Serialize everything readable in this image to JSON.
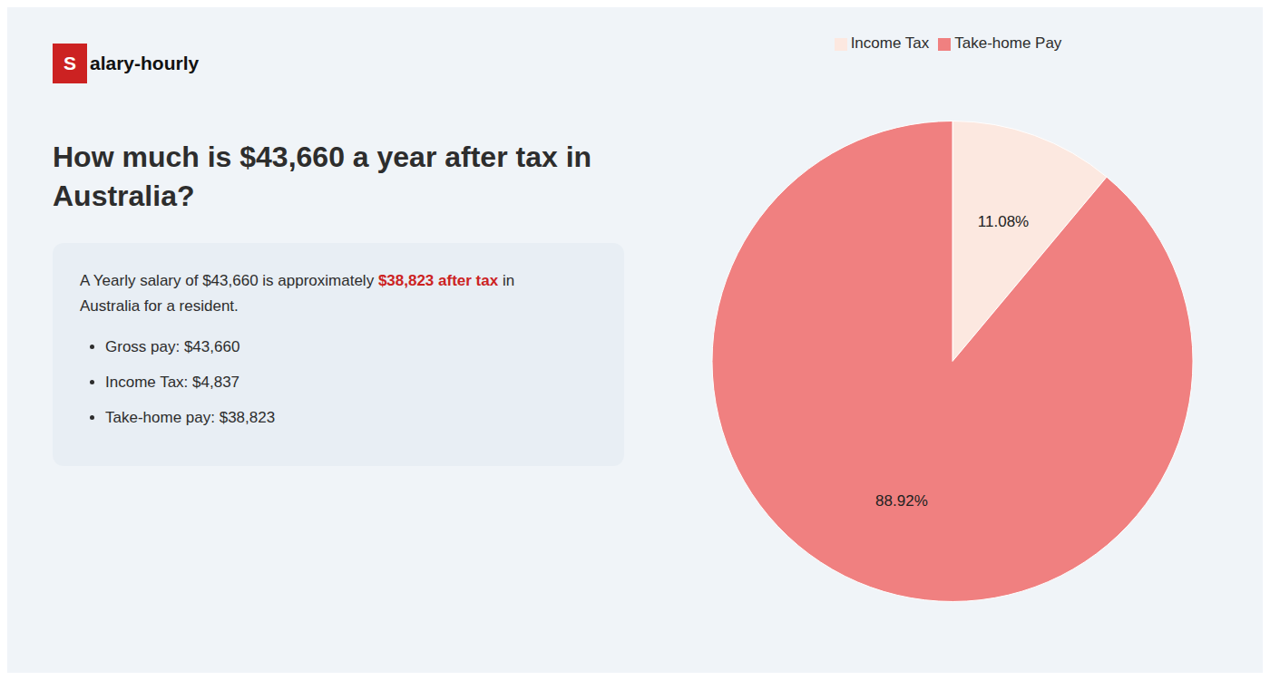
{
  "chart_data": {
    "type": "pie",
    "title": "How much is $43,660 a year after tax in Australia?",
    "annotations": [
      [
        {
          "text": "Salary-hourly",
          "color": "#cc2222"
        }
      ],
      [
        {
          "text": "A Yearly salary of $43,660 is approximately "
        },
        {
          "text": "$38,823 after tax",
          "color": "#cc2222"
        },
        {
          "text": " in"
        }
      ],
      [
        {
          "text": "Australia for a resident."
        }
      ],
      [
        {
          "text": "Gross pay: $43,660"
        }
      ],
      [
        {
          "text": "Income Tax: $4,837"
        }
      ],
      [
        {
          "text": "Take-home pay: $38,823"
        }
      ]
    ],
    "categories": [
      "Income Tax",
      "Take-home Pay"
    ],
    "values": [
      11.08,
      88.92
    ],
    "value_labels": [
      "11.08%",
      "88.92%"
    ],
    "colors": [
      "#fce8e0",
      "#f08080"
    ],
    "data_labels": true,
    "legend": "top"
  }
}
